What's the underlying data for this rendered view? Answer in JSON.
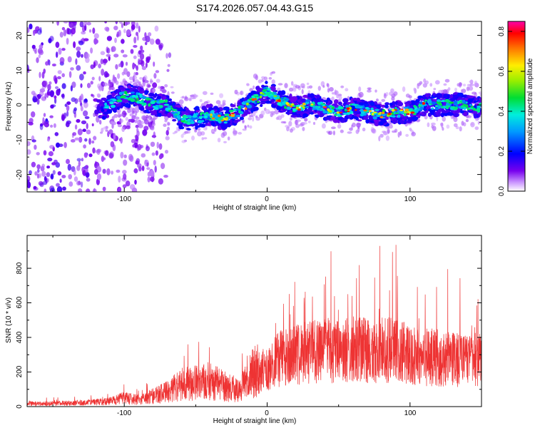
{
  "title": "S174.2026.057.04.43.G15",
  "chart_data": [
    {
      "type": "heatmap",
      "xlabel": "Height of straight line (km)",
      "ylabel": "Frequency (Hz)",
      "xlim": [
        -168,
        150
      ],
      "ylim": [
        -25,
        24
      ],
      "x_ticks": [
        "-100",
        "0",
        "100"
      ],
      "y_ticks": [
        "-20",
        "-10",
        "0",
        "10",
        "20"
      ],
      "ridge": {
        "x": [
          -120,
          -110,
          -100,
          -90,
          -80,
          -70,
          -60,
          -50,
          -40,
          -30,
          -20,
          -10,
          0,
          10,
          20,
          30,
          40,
          50,
          60,
          70,
          80,
          90,
          100,
          110,
          120,
          130,
          140,
          150
        ],
        "frequency": [
          -2,
          0,
          3,
          2,
          0,
          0,
          -4,
          -4,
          -3,
          -4,
          -2,
          1,
          4,
          1,
          -1,
          0,
          -1,
          -2,
          -1,
          -2,
          -3,
          -2,
          -2,
          0,
          0,
          0,
          0,
          -1
        ]
      },
      "colorbar": {
        "label": "Normalized spectral amplitude",
        "range": [
          0,
          0.85
        ],
        "ticks": [
          "0.0",
          "0.2",
          "0.4",
          "0.6",
          "0.8"
        ]
      }
    },
    {
      "type": "line",
      "xlabel": "Height of straight line (km)",
      "ylabel": "SNR (10 * v/v)",
      "xlim": [
        -168,
        150
      ],
      "ylim": [
        0,
        990
      ],
      "x_ticks": [
        "-100",
        "0",
        "100"
      ],
      "y_ticks": [
        "0",
        "200",
        "400",
        "600",
        "800"
      ],
      "color": "#ee3333",
      "envelope": {
        "x": [
          -168,
          -130,
          -110,
          -100,
          -90,
          -80,
          -70,
          -60,
          -50,
          -40,
          -30,
          -20,
          -10,
          0,
          5,
          10,
          20,
          30,
          40,
          50,
          60,
          70,
          80,
          90,
          100,
          110,
          120,
          130,
          140,
          150
        ],
        "snr": [
          20,
          25,
          35,
          60,
          45,
          70,
          100,
          150,
          160,
          170,
          140,
          110,
          230,
          260,
          300,
          330,
          350,
          370,
          380,
          380,
          390,
          380,
          390,
          380,
          350,
          340,
          330,
          320,
          310,
          320
        ]
      }
    }
  ]
}
